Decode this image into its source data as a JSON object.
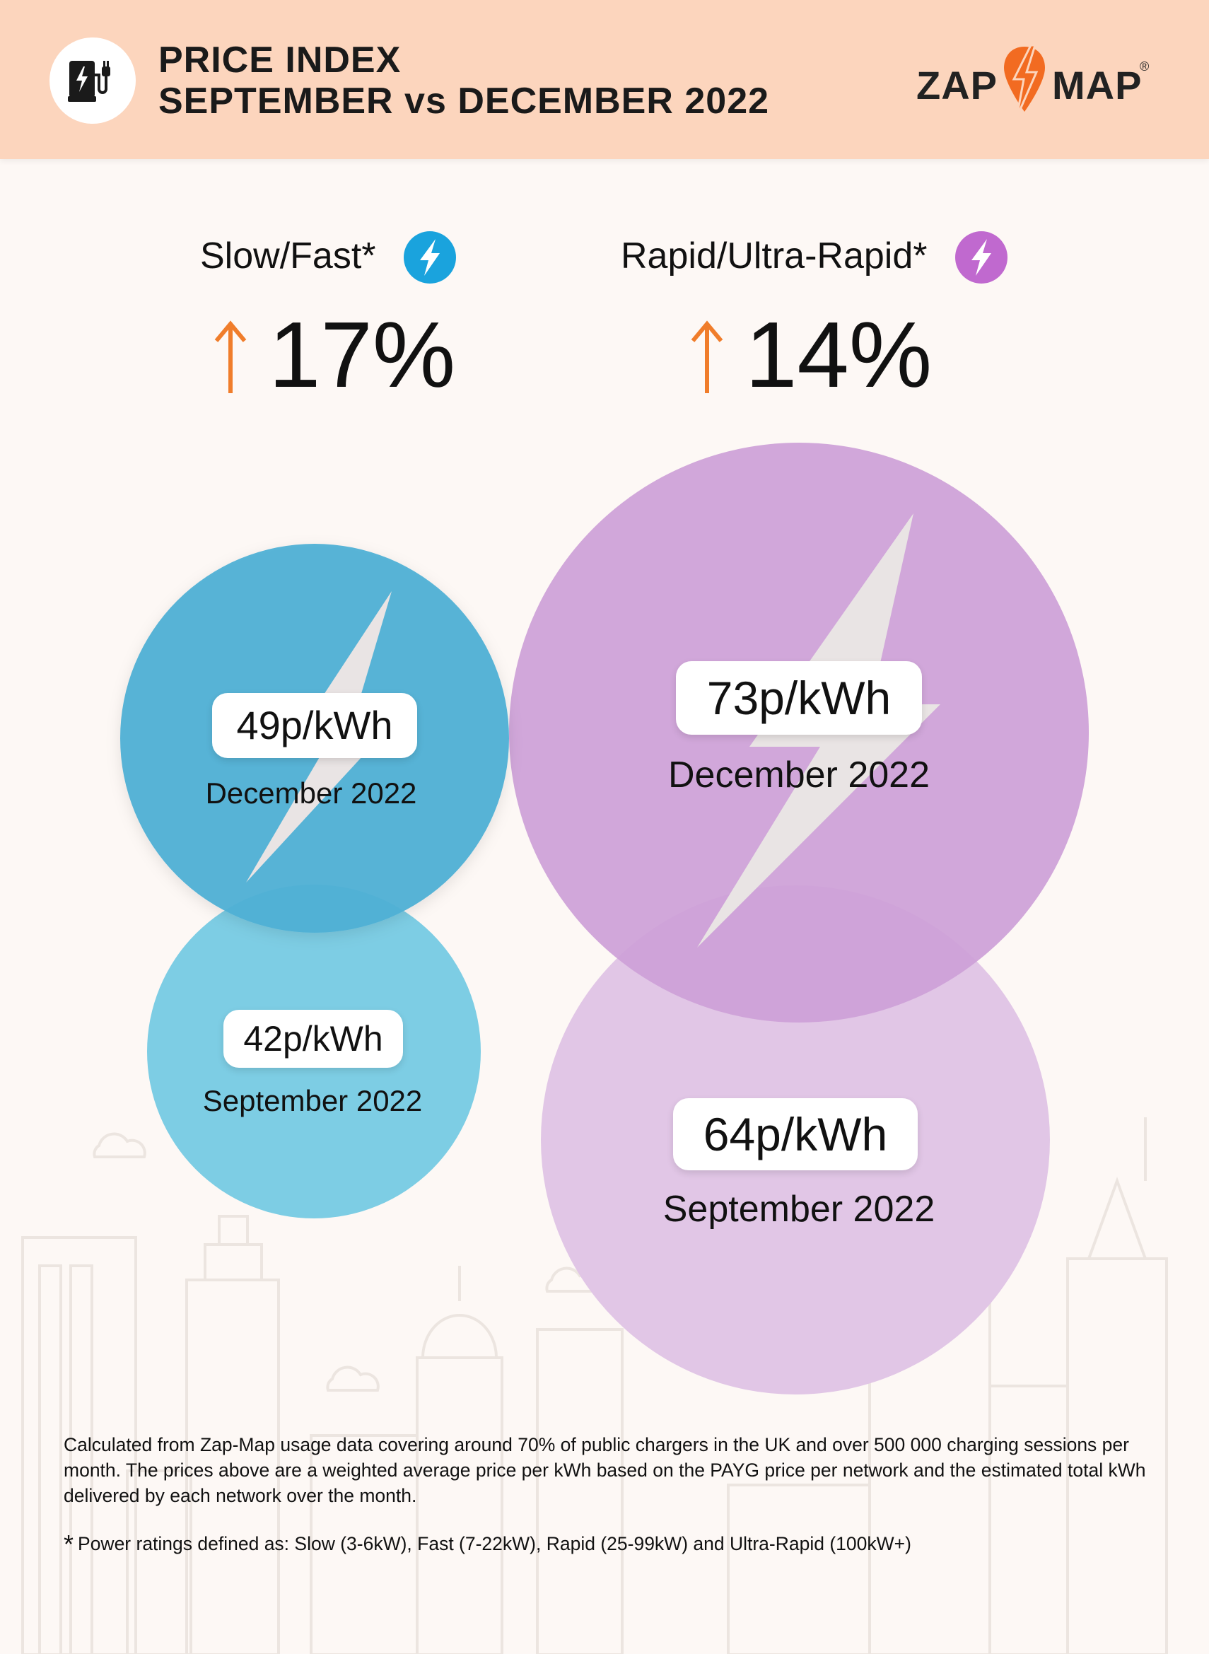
{
  "header": {
    "title_line1": "PRICE INDEX",
    "title_line2": "SEPTEMBER vs DECEMBER 2022",
    "logo_left": "ZAP",
    "logo_right": "MAP",
    "logo_mark": "®",
    "icon": "ev-charger-icon"
  },
  "categories": [
    {
      "label": "Slow/Fast*",
      "change": "17%",
      "direction": "up",
      "color": "#1aa3dd",
      "icon": "lightning-bolt-icon"
    },
    {
      "label": "Rapid/Ultra-Rapid*",
      "change": "14%",
      "direction": "up",
      "color": "#c069cf",
      "icon": "lightning-bolt-icon"
    }
  ],
  "bubbles": {
    "slow_fast_dec": {
      "value_label": "49p/kWh",
      "month": "December 2022"
    },
    "slow_fast_sep": {
      "value_label": "42p/kWh",
      "month": "September 2022"
    },
    "rapid_dec": {
      "value_label": "73p/kWh",
      "month": "December 2022"
    },
    "rapid_sep": {
      "value_label": "64p/kWh",
      "month": "September 2022"
    }
  },
  "chart_data": {
    "type": "bubble",
    "unit": "p/kWh",
    "series": [
      {
        "name": "Slow/Fast*",
        "change_pct": 17,
        "points": [
          {
            "label": "September 2022",
            "value": 42
          },
          {
            "label": "December 2022",
            "value": 49
          }
        ]
      },
      {
        "name": "Rapid/Ultra-Rapid*",
        "change_pct": 14,
        "points": [
          {
            "label": "September 2022",
            "value": 64
          },
          {
            "label": "December 2022",
            "value": 73
          }
        ]
      }
    ]
  },
  "colors": {
    "header_bg": "#fcd5bd",
    "page_bg": "#fdf8f5",
    "arrow": "#f07d2b",
    "slow_dec": "#4fb0d5",
    "slow_sep": "#7dcde4",
    "rapid_dec": "#cda0d7",
    "rapid_sep": "#e1c6e6"
  },
  "footnote": "Calculated from Zap-Map usage data covering around 70% of public chargers in the UK and over 500 000 charging sessions per month. The prices above are a weighted average price per kWh based on the PAYG price per network and the estimated total kWh delivered by each network over the month.",
  "power_note_star": "*",
  "power_note": "Power ratings defined as: Slow (3-6kW), Fast (7-22kW), Rapid (25-99kW) and Ultra-Rapid (100kW+)"
}
